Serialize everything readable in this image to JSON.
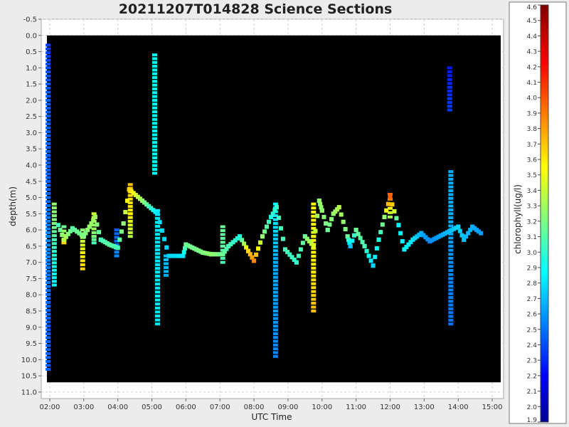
{
  "chart_data": {
    "type": "heatmap",
    "title": "20211207T014828 Science Sections",
    "xlabel": "UTC Time",
    "ylabel": "depth(m)",
    "colorbar_label": "chlorophyll(ug/l)",
    "background": "#000000",
    "xlim": [
      "01:45",
      "15:20"
    ],
    "ylim": [
      11.2,
      -0.5
    ],
    "y_inverted": true,
    "x_ticks": [
      "02:00",
      "03:00",
      "04:00",
      "05:00",
      "06:00",
      "07:00",
      "08:00",
      "09:00",
      "10:00",
      "11:00",
      "12:00",
      "13:00",
      "14:00",
      "15:00"
    ],
    "y_ticks": [
      "-0.5",
      "0.0",
      "0.5",
      "1.0",
      "1.5",
      "2.0",
      "2.5",
      "3.0",
      "3.5",
      "4.0",
      "4.5",
      "5.0",
      "5.5",
      "6.0",
      "6.5",
      "7.0",
      "7.5",
      "8.0",
      "8.5",
      "9.0",
      "9.5",
      "10.0",
      "10.5",
      "11.0"
    ],
    "colorbar": {
      "min": 1.9,
      "max": 4.6,
      "ticks": [
        "1.9",
        "2.0",
        "2.1",
        "2.2",
        "2.3",
        "2.4",
        "2.5",
        "2.6",
        "2.7",
        "2.8",
        "2.9",
        "3.0",
        "3.1",
        "3.2",
        "3.3",
        "3.4",
        "3.5",
        "3.6",
        "3.7",
        "3.8",
        "3.9",
        "4.0",
        "4.1",
        "4.2",
        "4.3",
        "4.4",
        "4.5",
        "4.6"
      ],
      "colormap": "jet"
    },
    "grid": true,
    "profiles": [
      {
        "time": "01:57",
        "values": [
          [
            0.3,
            2.4
          ],
          [
            1.0,
            2.45
          ],
          [
            2.0,
            2.5
          ],
          [
            3.7,
            2.5
          ],
          [
            4.5,
            2.5
          ],
          [
            5.5,
            2.55
          ],
          [
            6.2,
            2.6
          ],
          [
            6.6,
            2.6
          ],
          [
            7.5,
            2.55
          ],
          [
            8.6,
            2.5
          ],
          [
            9.2,
            2.5
          ],
          [
            10.3,
            2.5
          ]
        ]
      },
      {
        "time": "02:08",
        "values": [
          [
            5.2,
            3.3
          ],
          [
            5.8,
            3.25
          ],
          [
            6.3,
            3.1
          ],
          [
            6.9,
            3.0
          ],
          [
            7.7,
            2.9
          ]
        ]
      },
      {
        "time": "02:25",
        "values": [
          [
            5.9,
            3.2
          ],
          [
            6.3,
            3.55
          ],
          [
            6.4,
            3.7
          ]
        ]
      },
      {
        "time": "02:58",
        "values": [
          [
            6.0,
            3.3
          ],
          [
            6.7,
            3.6
          ],
          [
            7.2,
            3.7
          ]
        ]
      },
      {
        "time": "03:18",
        "values": [
          [
            5.5,
            3.45
          ],
          [
            6.2,
            3.25
          ],
          [
            6.4,
            3.1
          ]
        ]
      },
      {
        "time": "03:58",
        "values": [
          [
            6.0,
            2.5
          ],
          [
            6.8,
            2.6
          ]
        ]
      },
      {
        "time": "04:22",
        "values": [
          [
            4.6,
            3.75
          ],
          [
            5.5,
            3.6
          ],
          [
            6.2,
            3.4
          ]
        ]
      },
      {
        "time": "05:05",
        "values": [
          [
            0.6,
            2.9
          ],
          [
            2.0,
            2.9
          ],
          [
            4.25,
            2.9
          ]
        ]
      },
      {
        "time": "05:10",
        "values": [
          [
            5.4,
            2.85
          ],
          [
            6.5,
            2.85
          ],
          [
            7.3,
            2.85
          ],
          [
            8.9,
            2.85
          ]
        ]
      },
      {
        "time": "05:25",
        "values": [
          [
            6.8,
            2.75
          ],
          [
            7.4,
            2.7
          ]
        ]
      },
      {
        "time": "07:05",
        "values": [
          [
            5.9,
            3.2
          ],
          [
            6.5,
            3.15
          ],
          [
            7.0,
            3.1
          ]
        ]
      },
      {
        "time": "08:38",
        "values": [
          [
            5.2,
            2.9
          ],
          [
            7.0,
            2.7
          ],
          [
            8.5,
            2.65
          ],
          [
            9.9,
            2.6
          ]
        ]
      },
      {
        "time": "09:45",
        "values": [
          [
            5.2,
            3.6
          ],
          [
            6.2,
            3.55
          ],
          [
            7.3,
            3.65
          ],
          [
            8.5,
            3.75
          ]
        ]
      },
      {
        "time": "12:00",
        "values": [
          [
            4.9,
            4.0
          ],
          [
            5.2,
            3.7
          ],
          [
            5.6,
            3.35
          ]
        ]
      },
      {
        "time": "13:45",
        "values": [
          [
            1.0,
            2.3
          ],
          [
            1.6,
            2.35
          ],
          [
            2.3,
            2.4
          ]
        ]
      },
      {
        "time": "13:47",
        "values": [
          [
            4.2,
            2.7
          ],
          [
            5.5,
            2.7
          ],
          [
            6.5,
            2.65
          ],
          [
            7.5,
            2.6
          ],
          [
            8.9,
            2.55
          ]
        ]
      }
    ],
    "tracks": [
      {
        "time": "02:15",
        "depth": 5.85,
        "value": 3.1
      },
      {
        "time": "02:25",
        "depth": 6.3,
        "value": 3.4
      },
      {
        "time": "02:40",
        "depth": 5.95,
        "value": 3.15
      },
      {
        "time": "03:00",
        "depth": 6.2,
        "value": 3.25
      },
      {
        "time": "03:10",
        "depth": 5.9,
        "value": 3.3
      },
      {
        "time": "03:20",
        "depth": 5.6,
        "value": 3.35
      },
      {
        "time": "03:30",
        "depth": 6.3,
        "value": 3.1
      },
      {
        "time": "03:45",
        "depth": 6.45,
        "value": 3.15
      },
      {
        "time": "04:00",
        "depth": 6.55,
        "value": 3.1
      },
      {
        "time": "04:10",
        "depth": 5.8,
        "value": 3.3
      },
      {
        "time": "04:20",
        "depth": 4.75,
        "value": 3.7
      },
      {
        "time": "05:10",
        "depth": 5.5,
        "value": 2.85
      },
      {
        "time": "05:30",
        "depth": 6.8,
        "value": 2.8
      },
      {
        "time": "05:55",
        "depth": 6.8,
        "value": 2.85
      },
      {
        "time": "06:00",
        "depth": 6.45,
        "value": 3.2
      },
      {
        "time": "06:30",
        "depth": 6.7,
        "value": 3.25
      },
      {
        "time": "06:45",
        "depth": 6.75,
        "value": 3.3
      },
      {
        "time": "07:05",
        "depth": 6.75,
        "value": 3.2
      },
      {
        "time": "07:15",
        "depth": 6.5,
        "value": 3.1
      },
      {
        "time": "07:35",
        "depth": 6.2,
        "value": 3.0
      },
      {
        "time": "07:50",
        "depth": 6.65,
        "value": 3.7
      },
      {
        "time": "08:00",
        "depth": 6.95,
        "value": 3.9
      },
      {
        "time": "08:15",
        "depth": 6.2,
        "value": 3.3
      },
      {
        "time": "08:30",
        "depth": 5.6,
        "value": 3.0
      },
      {
        "time": "08:40",
        "depth": 5.3,
        "value": 3.05
      },
      {
        "time": "08:55",
        "depth": 6.6,
        "value": 3.1
      },
      {
        "time": "09:15",
        "depth": 7.0,
        "value": 3.05
      },
      {
        "time": "09:30",
        "depth": 6.2,
        "value": 3.2
      },
      {
        "time": "09:45",
        "depth": 6.5,
        "value": 3.5
      },
      {
        "time": "09:55",
        "depth": 5.1,
        "value": 3.3
      },
      {
        "time": "10:00",
        "depth": 5.4,
        "value": 3.3
      },
      {
        "time": "10:10",
        "depth": 6.0,
        "value": 3.2
      },
      {
        "time": "10:20",
        "depth": 5.5,
        "value": 3.3
      },
      {
        "time": "10:30",
        "depth": 5.3,
        "value": 3.4
      },
      {
        "time": "10:45",
        "depth": 6.2,
        "value": 3.2
      },
      {
        "time": "10:50",
        "depth": 6.5,
        "value": 2.75
      },
      {
        "time": "11:00",
        "depth": 6.0,
        "value": 3.2
      },
      {
        "time": "11:15",
        "depth": 6.5,
        "value": 3.1
      },
      {
        "time": "11:30",
        "depth": 7.1,
        "value": 2.8
      },
      {
        "time": "11:40",
        "depth": 6.3,
        "value": 3.0
      },
      {
        "time": "11:50",
        "depth": 5.6,
        "value": 3.3
      },
      {
        "time": "12:00",
        "depth": 5.0,
        "value": 4.0
      },
      {
        "time": "12:15",
        "depth": 5.85,
        "value": 2.9
      },
      {
        "time": "12:25",
        "depth": 6.6,
        "value": 2.9
      },
      {
        "time": "12:40",
        "depth": 6.3,
        "value": 2.85
      },
      {
        "time": "12:55",
        "depth": 6.1,
        "value": 2.7
      },
      {
        "time": "13:10",
        "depth": 6.35,
        "value": 2.6
      },
      {
        "time": "14:00",
        "depth": 5.9,
        "value": 2.8
      },
      {
        "time": "14:10",
        "depth": 6.3,
        "value": 2.75
      },
      {
        "time": "14:25",
        "depth": 5.9,
        "value": 2.7
      },
      {
        "time": "14:40",
        "depth": 6.1,
        "value": 2.65
      }
    ]
  }
}
